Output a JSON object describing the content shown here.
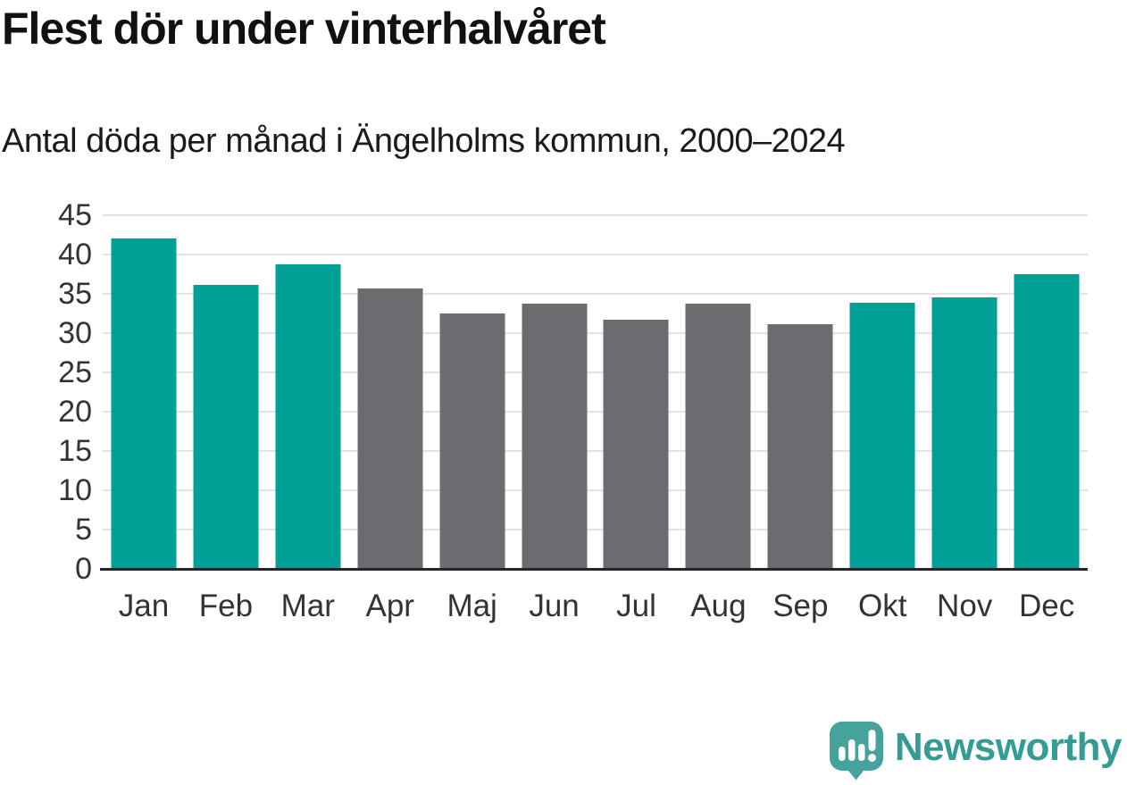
{
  "title": "Flest dör under vinterhalvåret",
  "subtitle": "Antal döda per månad i Ängelholms kommun, 2000–2024",
  "chart_data": {
    "type": "bar",
    "categories": [
      "Jan",
      "Feb",
      "Mar",
      "Apr",
      "Maj",
      "Jun",
      "Jul",
      "Aug",
      "Sep",
      "Okt",
      "Nov",
      "Dec"
    ],
    "values": [
      42.0,
      36.1,
      38.7,
      35.7,
      32.5,
      33.8,
      31.7,
      33.8,
      31.1,
      33.9,
      34.6,
      37.5
    ],
    "bar_colors": [
      "#00a096",
      "#00a096",
      "#00a096",
      "#6c6b70",
      "#6c6b70",
      "#6c6b70",
      "#6c6b70",
      "#6c6b70",
      "#6c6b70",
      "#00a096",
      "#00a096",
      "#00a096"
    ],
    "title": "Flest dör under vinterhalvåret",
    "subtitle": "Antal döda per månad i Ängelholms kommun, 2000–2024",
    "xlabel": "",
    "ylabel": "",
    "ylim": [
      0,
      45
    ],
    "yticks": [
      0,
      5,
      10,
      15,
      20,
      25,
      30,
      35,
      40,
      45
    ],
    "grid": "horizontal",
    "legend": "none"
  },
  "colors": {
    "winter_bar": "#00a096",
    "summer_bar": "#6c6b70",
    "gridline": "#e3e3e3",
    "axis_line": "#26262a",
    "tick_label": "#333333",
    "title_text": "#111111",
    "logo_teal": "#46a39c",
    "logo_text": "#349c95"
  },
  "logo": {
    "label": "Newsworthy",
    "icon": "speech-bubble-bar-chart-icon"
  }
}
